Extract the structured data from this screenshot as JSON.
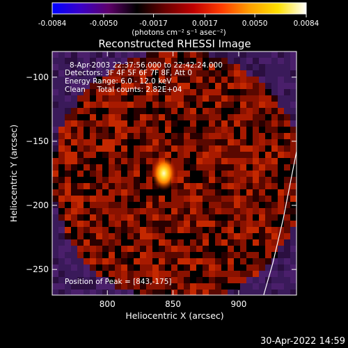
{
  "colorbar": {
    "tick_labels": [
      "-0.0084",
      "-0.0050",
      "-0.0017",
      "0.0017",
      "0.0050",
      "0.0084"
    ],
    "tick_values": [
      -0.0084,
      -0.005,
      -0.0017,
      0.0017,
      0.005,
      0.0084
    ],
    "range": [
      -0.0084,
      0.0084
    ],
    "units_label": "(photons cm⁻² s⁻¹ asec⁻²)",
    "colormap": [
      "#0000ff",
      "#3a00c8",
      "#5e006a",
      "#000000",
      "#6a0000",
      "#c00000",
      "#ff3c00",
      "#ffa000",
      "#ffe000",
      "#ffffff"
    ]
  },
  "plot": {
    "title": "Reconstructed RHESSI Image",
    "info_lines": [
      "8-Apr-2003 22:37:56.000 to 22:42:24.000",
      "Detectors: 3F 4F 5F 6F 7F 8F, Att 0",
      "Energy Range: 6.0 - 12.0 keV",
      "Clean     Total counts: 2.82E+04"
    ],
    "peak_note": "Position of Peak = [843,-175]"
  },
  "chart_data": {
    "type": "heatmap",
    "title": "Reconstructed RHESSI Image",
    "xlabel": "Heliocentric X (arcsec)",
    "ylabel": "Heliocentric Y (arcsec)",
    "xlim": [
      758,
      944
    ],
    "ylim": [
      -270,
      -80
    ],
    "x_ticks": [
      800,
      850,
      900
    ],
    "y_ticks": [
      -100,
      -150,
      -200,
      -250
    ],
    "x_tick_labels": [
      "800",
      "850",
      "900"
    ],
    "y_tick_labels": [
      "−100",
      "−150",
      "−200",
      "−250"
    ],
    "grid": false,
    "peak": {
      "x": 843,
      "y": -175
    },
    "limb_curve": [
      [
        919,
        -270
      ],
      [
        926,
        -245
      ],
      [
        934,
        -210
      ],
      [
        944,
        -158
      ]
    ],
    "value_range": [
      -0.0084,
      0.0084
    ]
  },
  "footer": {
    "timestamp": "30-Apr-2022 14:59"
  }
}
